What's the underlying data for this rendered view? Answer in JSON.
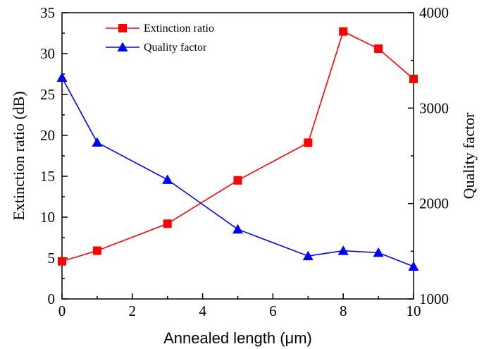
{
  "chart_data": {
    "type": "line",
    "title": "",
    "xlabel": "Annealed length (μm)",
    "ylabel_left": "Extinction ratio (dB)",
    "ylabel_right": "Quality factor",
    "xlim": [
      0,
      10
    ],
    "ylim_left": [
      0,
      35
    ],
    "ylim_right": [
      1000,
      4000
    ],
    "x_ticks": [
      0,
      2,
      4,
      6,
      8,
      10
    ],
    "y_left_ticks": [
      0,
      5,
      10,
      15,
      20,
      25,
      30,
      35
    ],
    "y_right_ticks": [
      1000,
      2000,
      3000,
      4000
    ],
    "grid": false,
    "legend_position": "top-center",
    "series": [
      {
        "name": "Extinction ratio",
        "axis": "left",
        "color": "#ff0000",
        "marker": "square",
        "x": [
          0,
          1,
          3,
          5,
          7,
          8,
          9,
          10
        ],
        "y": [
          4.6,
          5.9,
          9.2,
          14.5,
          19.1,
          32.7,
          30.6,
          26.9
        ]
      },
      {
        "name": "Quality factor",
        "axis": "right",
        "color": "#0000ff",
        "marker": "triangle",
        "x": [
          0,
          1,
          3,
          5,
          7,
          8,
          9,
          10
        ],
        "y": [
          3320,
          2640,
          2250,
          1730,
          1450,
          1505,
          1485,
          1340
        ]
      }
    ]
  }
}
